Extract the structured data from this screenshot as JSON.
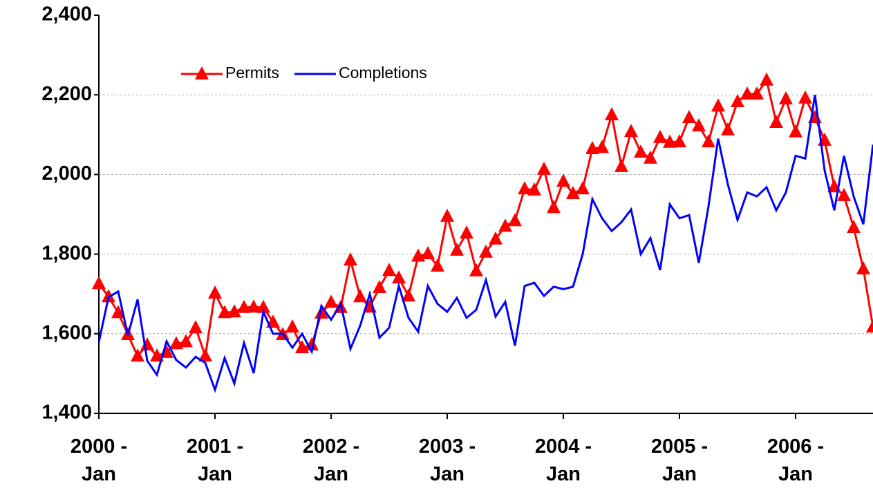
{
  "chart_data": {
    "type": "line",
    "categories": [
      "2000 - Jan",
      null,
      null,
      null,
      null,
      null,
      null,
      null,
      null,
      null,
      null,
      null,
      "2001 - Jan",
      null,
      null,
      null,
      null,
      null,
      null,
      null,
      null,
      null,
      null,
      null,
      "2002 - Jan",
      null,
      null,
      null,
      null,
      null,
      null,
      null,
      null,
      null,
      null,
      null,
      "2003 - Jan",
      null,
      null,
      null,
      null,
      null,
      null,
      null,
      null,
      null,
      null,
      null,
      "2004 - Jan",
      null,
      null,
      null,
      null,
      null,
      null,
      null,
      null,
      null,
      null,
      null,
      "2005 - Jan",
      null,
      null,
      null,
      null,
      null,
      null,
      null,
      null,
      null,
      null,
      null,
      "2006 - Jan",
      null,
      null,
      null,
      null,
      null,
      null,
      null,
      null
    ],
    "series": [
      {
        "name": "Permits",
        "color": "#ff0000",
        "marker": "triangle",
        "values": [
          1726,
          1693,
          1653,
          1598,
          1544,
          1572,
          1544,
          1553,
          1575,
          1580,
          1615,
          1544,
          1702,
          1653,
          1655,
          1666,
          1667,
          1666,
          1629,
          1598,
          1617,
          1565,
          1572,
          1652,
          1679,
          1666,
          1785,
          1693,
          1667,
          1716,
          1759,
          1740,
          1695,
          1795,
          1801,
          1770,
          1895,
          1810,
          1853,
          1758,
          1805,
          1838,
          1870,
          1884,
          1964,
          1961,
          2013,
          1917,
          1983,
          1952,
          1964,
          2065,
          2068,
          2150,
          2020,
          2108,
          2056,
          2041,
          2093,
          2081,
          2082,
          2143,
          2122,
          2082,
          2172,
          2112,
          2183,
          2202,
          2202,
          2237,
          2131,
          2190,
          2107,
          2192,
          2143,
          2086,
          1969,
          1947,
          1867,
          1763,
          1617
        ]
      },
      {
        "name": "Completions",
        "color": "#0000ff",
        "values": [
          1579,
          1692,
          1706,
          1596,
          1686,
          1532,
          1497,
          1581,
          1534,
          1515,
          1542,
          1527,
          1459,
          1539,
          1475,
          1577,
          1501,
          1655,
          1600,
          1600,
          1565,
          1600,
          1555,
          1670,
          1635,
          1675,
          1562,
          1620,
          1700,
          1590,
          1615,
          1720,
          1640,
          1605,
          1720,
          1675,
          1655,
          1690,
          1640,
          1660,
          1735,
          1643,
          1680,
          1570,
          1720,
          1728,
          1695,
          1718,
          1712,
          1718,
          1800,
          1938,
          1890,
          1858,
          1880,
          1912,
          1800,
          1840,
          1760,
          1925,
          1890,
          1898,
          1778,
          1920,
          2090,
          1975,
          1886,
          1955,
          1945,
          1968,
          1910,
          1955,
          2047,
          2040,
          2200,
          2010,
          1910,
          2047,
          1945,
          1875,
          2075
        ]
      }
    ],
    "ylim": [
      1400,
      2400
    ],
    "yticks": [
      {
        "value": 1400,
        "label": "1,400"
      },
      {
        "value": 1600,
        "label": "1,600"
      },
      {
        "value": 1800,
        "label": "1,800"
      },
      {
        "value": 2000,
        "label": "2,000"
      },
      {
        "value": 2200,
        "label": "2,200"
      },
      {
        "value": 2400,
        "label": "2,400"
      }
    ],
    "grid": true,
    "legend": "upper left"
  }
}
